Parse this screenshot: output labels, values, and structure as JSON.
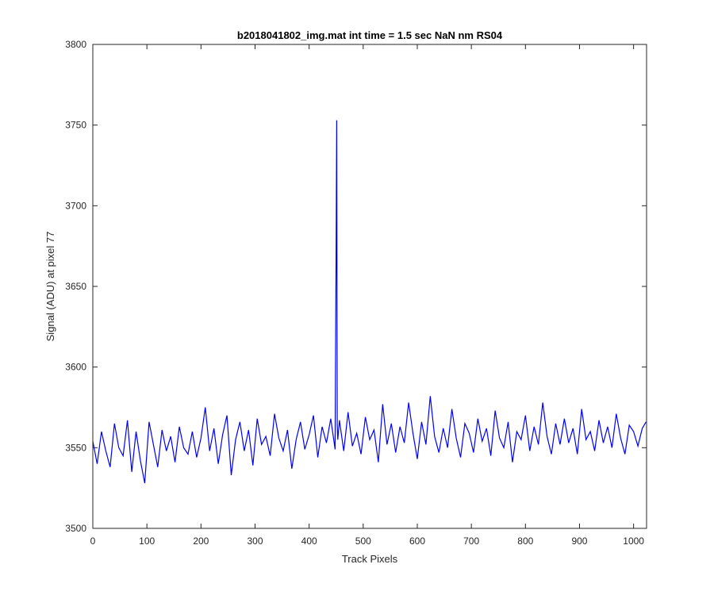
{
  "chart_data": {
    "type": "line",
    "title": "b2018041802_img.mat int time = 1.5 sec  NaN nm RS04",
    "xlabel": "Track Pixels",
    "ylabel": "Signal (ADU) at pixel 77",
    "xlim": [
      0,
      1024
    ],
    "ylim": [
      3500,
      3800
    ],
    "xticks": [
      0,
      100,
      200,
      300,
      400,
      500,
      600,
      700,
      800,
      900,
      1000
    ],
    "yticks": [
      3500,
      3550,
      3600,
      3650,
      3700,
      3750,
      3800
    ],
    "grid": false,
    "legend": "none",
    "color": "#0000ff",
    "series": [
      {
        "x": [
          0,
          8,
          16,
          24,
          32,
          40,
          48,
          56,
          64,
          72,
          80,
          88,
          96,
          104,
          112,
          120,
          128,
          136,
          144,
          152,
          160,
          168,
          176,
          184,
          192,
          200,
          208,
          216,
          224,
          232,
          240,
          248,
          256,
          264,
          272,
          280,
          288,
          296,
          304,
          312,
          320,
          328,
          336,
          344,
          352,
          360,
          368,
          376,
          384,
          392,
          400,
          408,
          416,
          424,
          432,
          440,
          448,
          450,
          451,
          452,
          453,
          456,
          464,
          472,
          480,
          488,
          496,
          504,
          512,
          520,
          528,
          536,
          544,
          552,
          560,
          568,
          576,
          584,
          592,
          600,
          608,
          616,
          624,
          632,
          640,
          648,
          656,
          664,
          672,
          680,
          688,
          696,
          704,
          712,
          720,
          728,
          736,
          744,
          752,
          760,
          768,
          776,
          784,
          792,
          800,
          808,
          816,
          824,
          832,
          840,
          848,
          856,
          864,
          872,
          880,
          888,
          896,
          904,
          912,
          920,
          928,
          936,
          944,
          952,
          960,
          968,
          976,
          984,
          992,
          1000,
          1008,
          1016,
          1023
        ],
        "y": [
          3554,
          3540,
          3560,
          3548,
          3538,
          3565,
          3550,
          3545,
          3567,
          3535,
          3560,
          3542,
          3528,
          3566,
          3552,
          3538,
          3561,
          3548,
          3557,
          3541,
          3563,
          3550,
          3546,
          3560,
          3544,
          3556,
          3575,
          3548,
          3562,
          3540,
          3558,
          3570,
          3533,
          3555,
          3566,
          3548,
          3561,
          3539,
          3568,
          3552,
          3557,
          3545,
          3571,
          3556,
          3548,
          3561,
          3537,
          3555,
          3566,
          3549,
          3558,
          3570,
          3544,
          3563,
          3553,
          3568,
          3549,
          3680,
          3753,
          3564,
          3555,
          3567,
          3548,
          3572,
          3551,
          3559,
          3546,
          3569,
          3555,
          3561,
          3541,
          3577,
          3552,
          3565,
          3547,
          3563,
          3553,
          3578,
          3559,
          3543,
          3566,
          3552,
          3582,
          3557,
          3547,
          3562,
          3550,
          3574,
          3556,
          3544,
          3565,
          3559,
          3547,
          3568,
          3554,
          3562,
          3545,
          3573,
          3556,
          3550,
          3566,
          3541,
          3560,
          3555,
          3570,
          3548,
          3563,
          3552,
          3578,
          3557,
          3546,
          3565,
          3552,
          3568,
          3553,
          3562,
          3546,
          3574,
          3555,
          3560,
          3548,
          3567,
          3553,
          3563,
          3550,
          3571,
          3556,
          3546,
          3564,
          3560,
          3551,
          3562,
          3566
        ]
      }
    ]
  }
}
